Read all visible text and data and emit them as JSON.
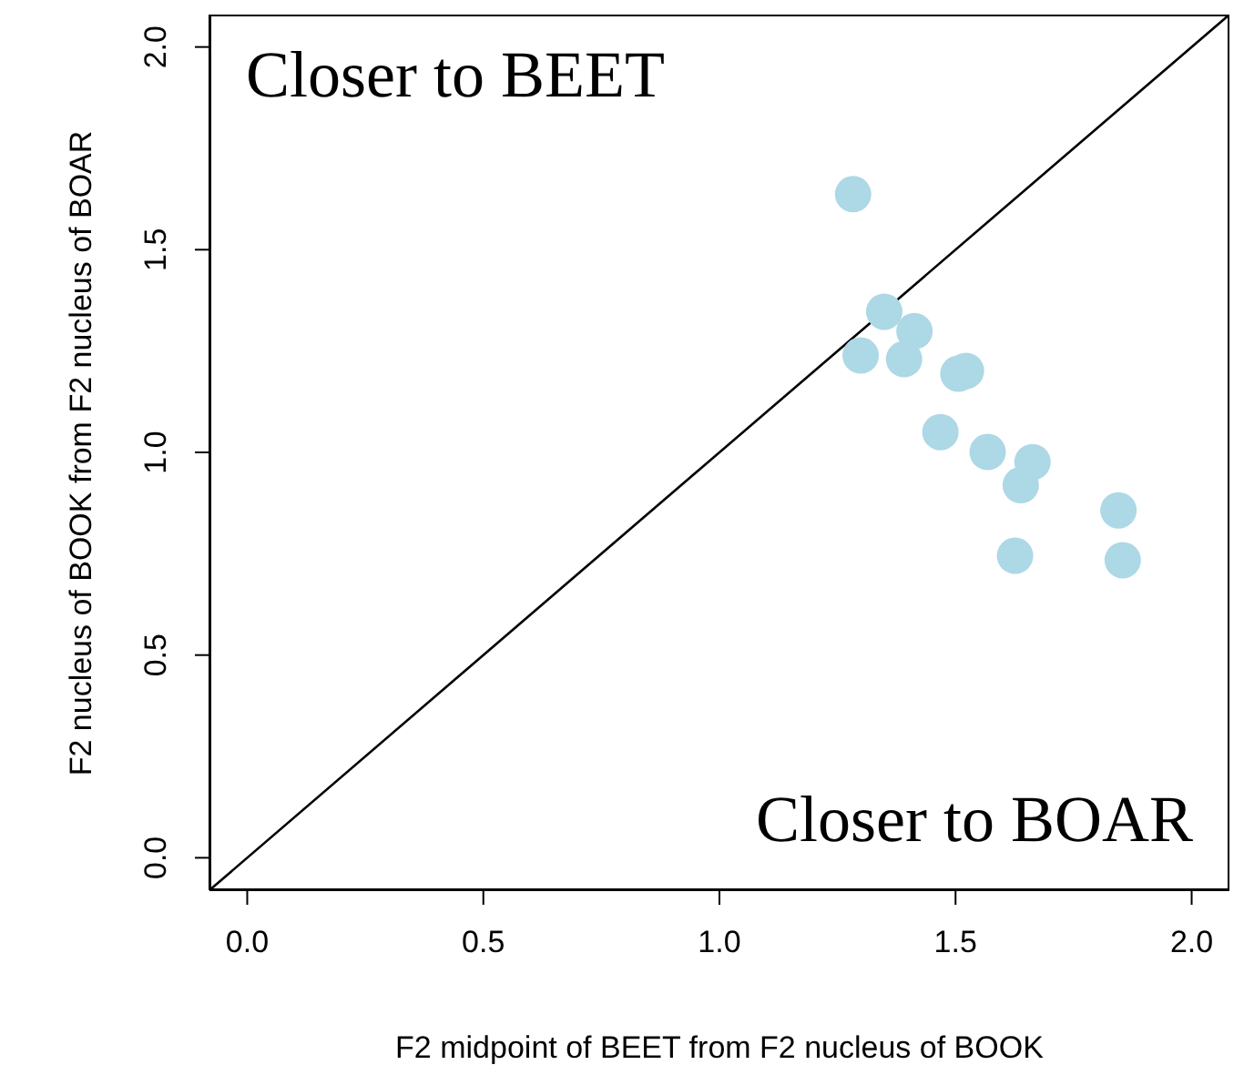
{
  "chart_data": {
    "type": "scatter",
    "xlabel": "F2 midpoint of BEET from F2 nucleus of BOOK",
    "ylabel": "F2 nucleus of BOOK from F2 nucleus of BOAR",
    "annotations": [
      "Closer to BEET",
      "Closer to BOAR"
    ],
    "xlim": [
      -0.08,
      2.08
    ],
    "ylim": [
      -0.08,
      2.08
    ],
    "xticks": [
      {
        "value": 0,
        "label": "0.0"
      },
      {
        "value": 0.5,
        "label": "0.5"
      },
      {
        "value": 1,
        "label": "1.0"
      },
      {
        "value": 1.5,
        "label": "1.5"
      },
      {
        "value": 2,
        "label": "2.0"
      }
    ],
    "yticks": [
      {
        "value": 0,
        "label": "0.0"
      },
      {
        "value": 0.5,
        "label": "0.5"
      },
      {
        "value": 1,
        "label": "1.0"
      },
      {
        "value": 1.5,
        "label": "1.5"
      },
      {
        "value": 2,
        "label": "2.0"
      }
    ],
    "grid": false,
    "legend": false,
    "marker": "circle",
    "series": [
      {
        "color": "#add8e6",
        "x": [
          1.283,
          1.349,
          1.413,
          1.299,
          1.391,
          1.506,
          1.522,
          1.468,
          1.568,
          1.663,
          1.638,
          1.845,
          1.626,
          1.854
        ],
        "values": [
          1.637,
          1.347,
          1.299,
          1.239,
          1.23,
          1.194,
          1.201,
          1.05,
          1.001,
          0.976,
          0.919,
          0.857,
          0.745,
          0.734
        ]
      },
      {
        "type": "line",
        "color": "#000000",
        "line_style": "solid",
        "marker": "none",
        "x": [
          -0.08,
          2.08
        ],
        "values": [
          -0.08,
          2.08
        ]
      }
    ]
  }
}
